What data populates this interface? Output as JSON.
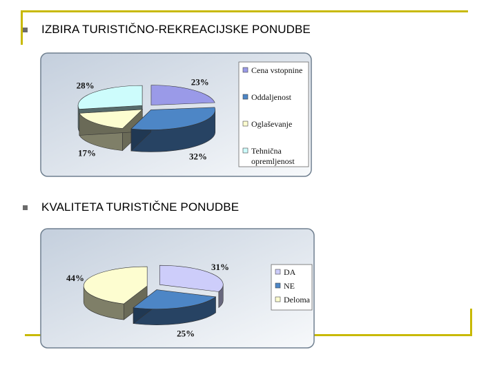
{
  "slide": {
    "heading1": "IZBIRA TURISTIČNO-REKREACIJSKE PONUDBE",
    "heading2": "KVALITETA TURISTIČNE PONUDBE"
  },
  "chart_data": [
    {
      "type": "pie",
      "title": "",
      "categories": [
        "Cena vstopnine",
        "Oddaljenost",
        "Oglaševanje",
        "Tehnična opremljenost"
      ],
      "values": [
        23,
        32,
        17,
        28
      ],
      "data_labels": [
        "23%",
        "32%",
        "17%",
        "28%"
      ],
      "colors": [
        "#9a9ae8",
        "#4d86c6",
        "#fdfdd0",
        "#cdfcfc"
      ],
      "legend": [
        "Cena vstopnine",
        "Oddaljenost",
        "Oglaševanje",
        "Tehnična opremljenost"
      ],
      "legend_placement": "right",
      "style": "3d exploded"
    },
    {
      "type": "pie",
      "title": "",
      "categories": [
        "DA",
        "NE",
        "Deloma"
      ],
      "values": [
        31,
        25,
        44
      ],
      "data_labels": [
        "31%",
        "25%",
        "44%"
      ],
      "colors": [
        "#cdcdfa",
        "#4d86c6",
        "#fdfdd0"
      ],
      "legend": [
        "DA",
        "NE",
        "Deloma"
      ],
      "legend_placement": "right",
      "style": "3d exploded"
    }
  ]
}
